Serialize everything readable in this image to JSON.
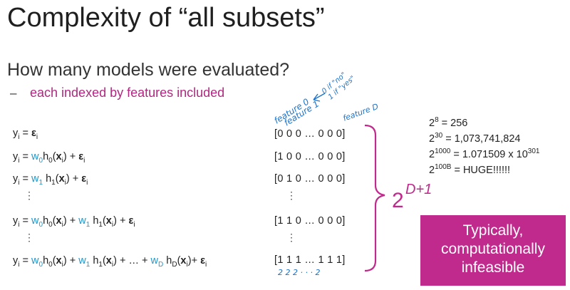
{
  "slide": {
    "title": "Complexity of “all subsets”",
    "subtitle": "How many models were evaluated?",
    "bullet_dash": "–",
    "bullet": "each indexed by features included"
  },
  "equations": {
    "row1": {
      "y": "y",
      "i": "i",
      "eq": " = ",
      "eps": "ε",
      "ei": "i"
    },
    "row2": {
      "pre": "y",
      "pre_sub": "i",
      "eq": " = ",
      "w": "w",
      "w_sub": "0",
      "h": "h",
      "h_sub": "0",
      "lp": "(",
      "x": "x",
      "x_sub": "i",
      "rp": ")",
      "plus": " + ",
      "eps": "ε",
      "eps_sub": "i"
    },
    "row3": {
      "pre": "y",
      "pre_sub": "i",
      "eq": " = ",
      "w": "w",
      "w_sub": "1",
      "h": "h",
      "h_sub": "1",
      "lp": "(",
      "x": "x",
      "x_sub": "i",
      "rp": ")",
      "plus": " + ",
      "eps": "ε",
      "eps_sub": "i"
    },
    "row4": {
      "pre": "y",
      "pre_sub": "i",
      "eq": " = ",
      "w0": "w",
      "w0_sub": "0",
      "h0": "h",
      "h0_sub": "0",
      "lp": "(",
      "x": "x",
      "x_sub": "i",
      "rp": ")",
      "plus": " + ",
      "w1": "w",
      "w1_sub": "1",
      "h1": "h",
      "h1_sub": "1",
      "eps": "ε",
      "eps_sub": "i"
    },
    "row5": {
      "pre": "y",
      "pre_sub": "i",
      "eq": " = ",
      "w0": "w",
      "w0_sub": "0",
      "h0": "h",
      "h0_sub": "0",
      "lp": "(",
      "x": "x",
      "x_sub": "i",
      "rp": ")",
      "plus": " + ",
      "w1": "w",
      "w1_sub": "1",
      "h1": "h",
      "h1_sub": "1",
      "dots": " + … + ",
      "wD": "w",
      "wD_sub": "D",
      "hD": "h",
      "hD_sub": "D",
      "plus2": "+ ",
      "eps": "ε",
      "eps_sub": "i"
    },
    "vdots": "⋮"
  },
  "vectors": [
    "[0 0 0 … 0 0 0]",
    "[1 0 0 … 0 0 0]",
    "[0 1 0 … 0 0 0]",
    "[1 1 0 … 0 0 0]",
    "[1 1 1  …  1 1 1]"
  ],
  "facts": [
    {
      "base": "2",
      "exp": "8",
      "rest": " = 256"
    },
    {
      "base": "2",
      "exp": "30",
      "rest": " = 1,073,741,824"
    },
    {
      "base": "2",
      "exp": "1000",
      "rest": " = 1.071509 x 10",
      "exp2": "301"
    },
    {
      "base": "2",
      "exp": "100B",
      "rest": " = HUGE!!!!!!"
    }
  ],
  "callout": {
    "line1": "Typically,",
    "line2": "computationally",
    "line3": "infeasible"
  },
  "handwriting": {
    "feature0": "feature 0",
    "feature1": "feature 1",
    "featureD": "feature D",
    "zero_if": "0 if \"no\"",
    "one_if": "1 if \"yes\"",
    "count_label": "2 2 2 · · · 2",
    "total": "2",
    "total_exp": "D+1"
  },
  "colors": {
    "accent": "#c02a8c",
    "bullet": "#b0287f",
    "coef": "#1f97c9",
    "ink": "#1e73c8"
  }
}
